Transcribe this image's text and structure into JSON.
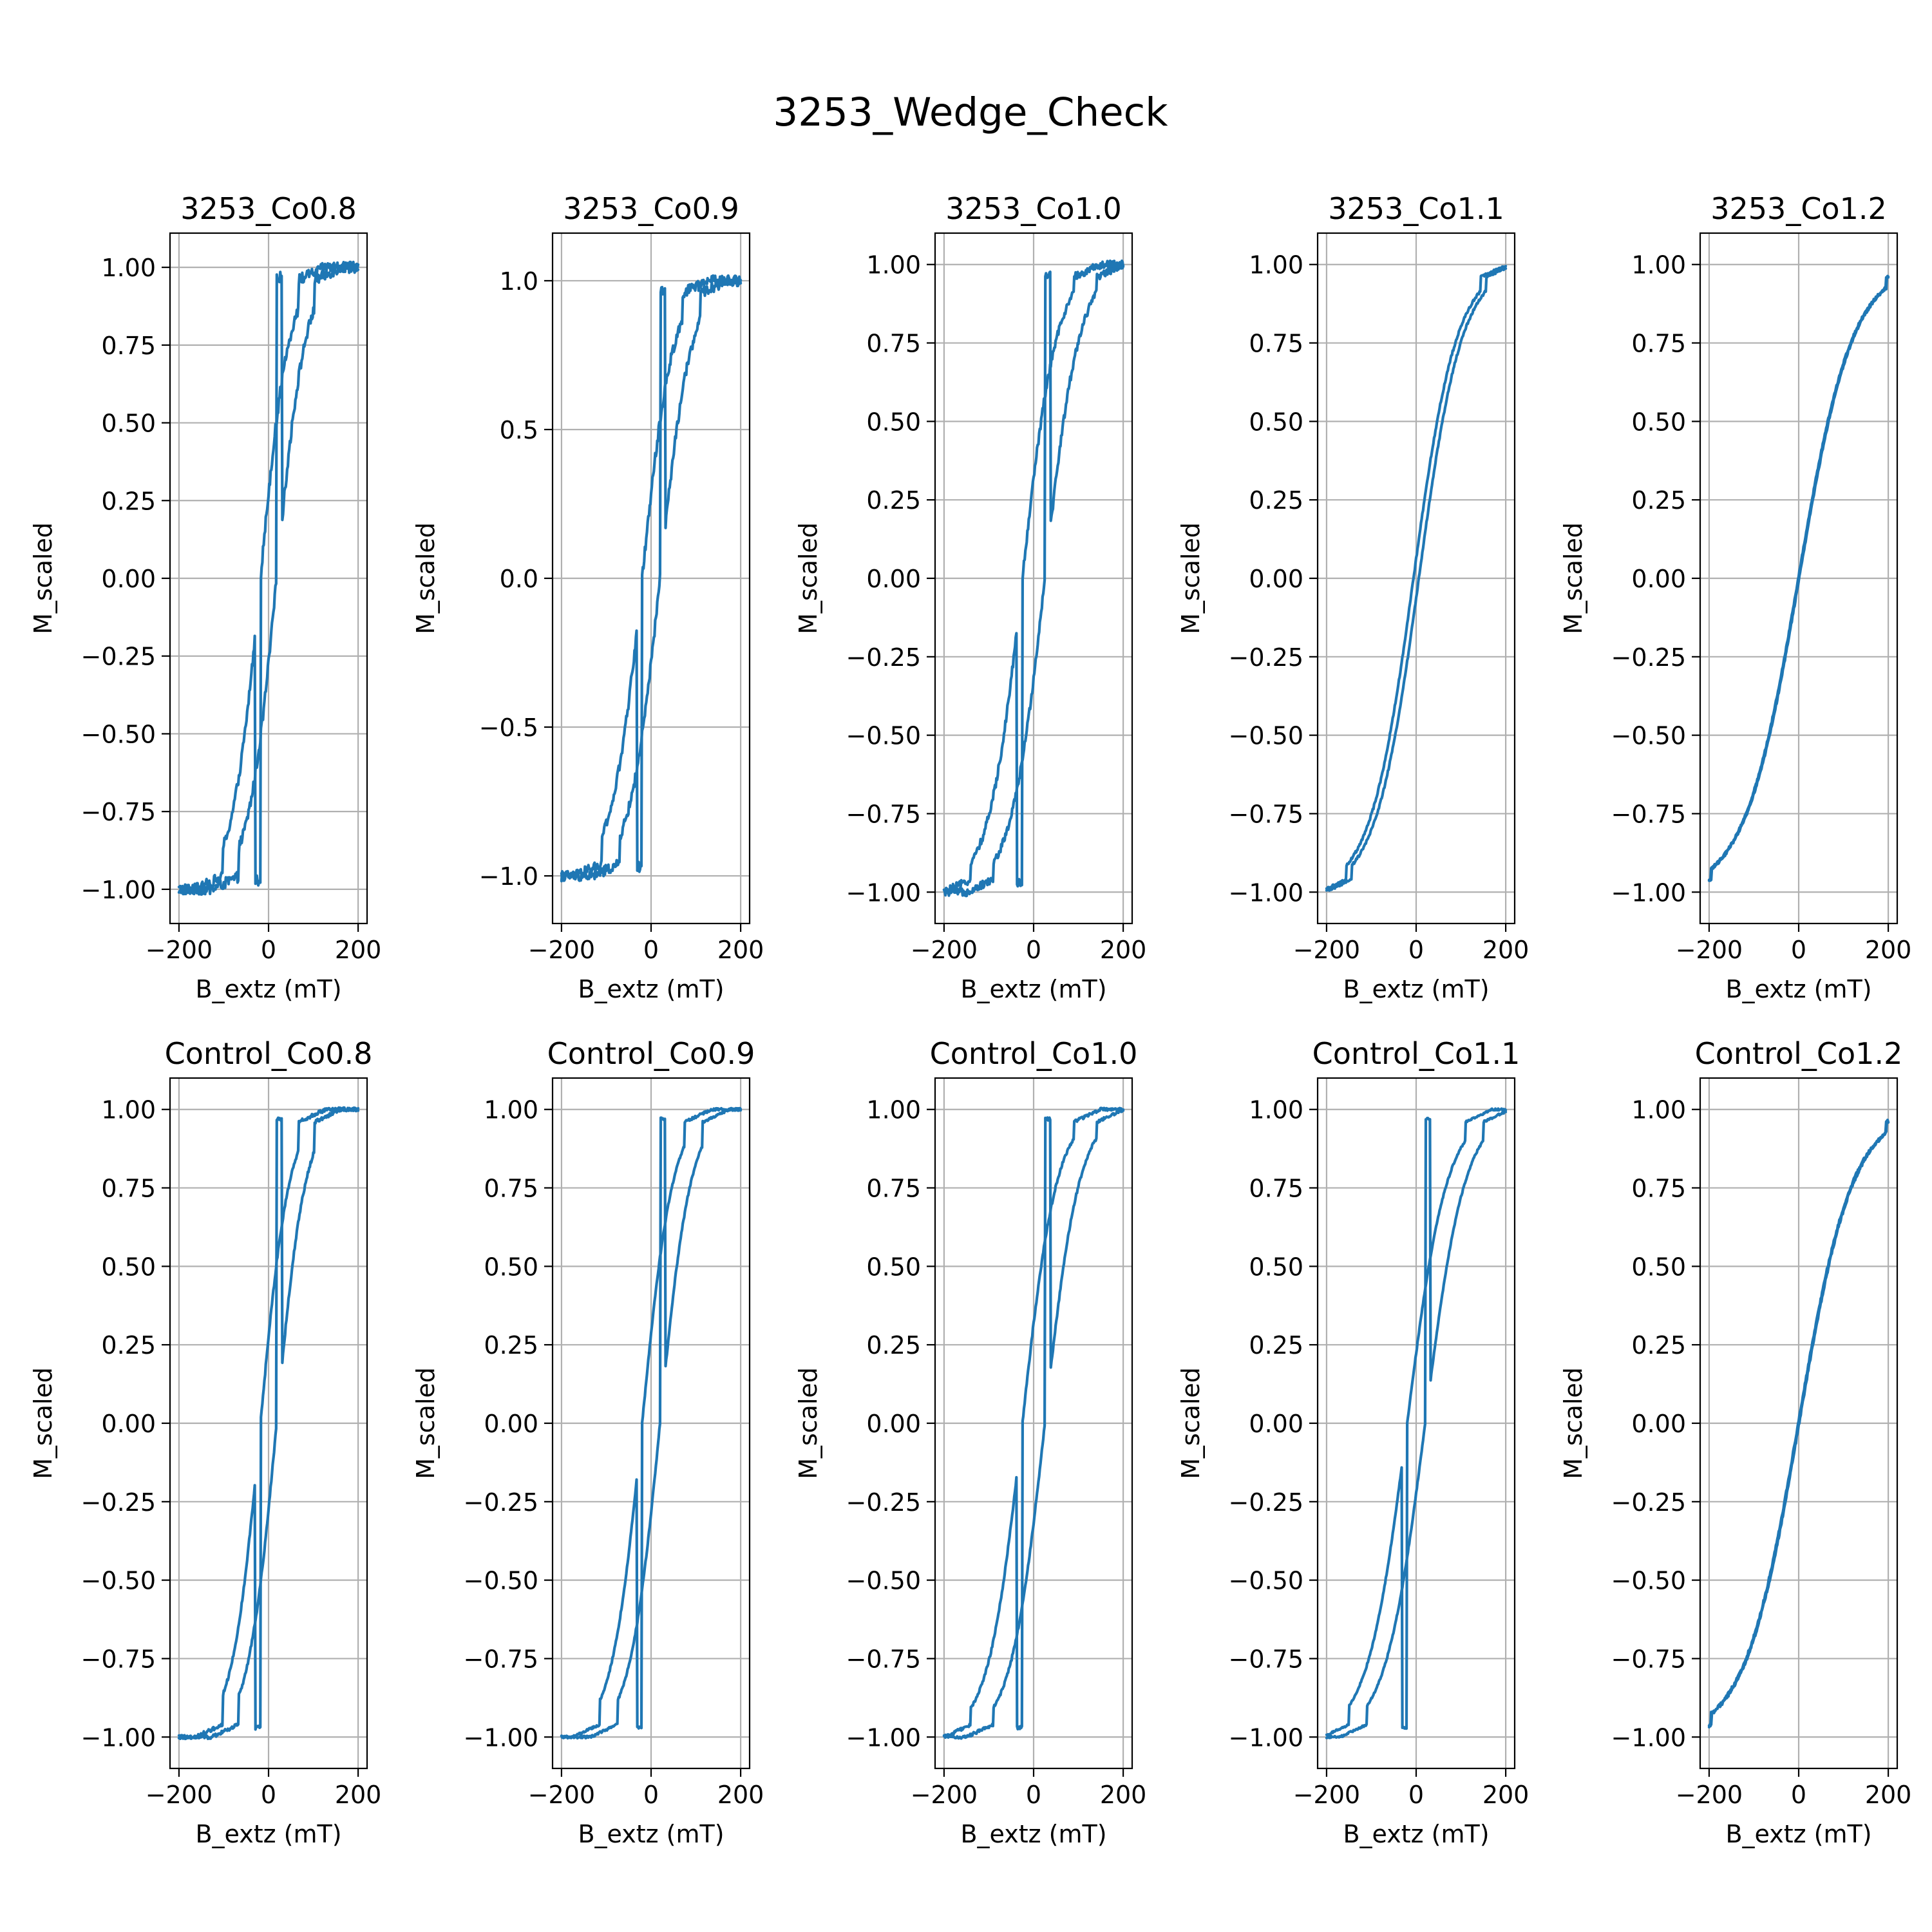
{
  "figure": {
    "title": "3253_Wedge_Check"
  },
  "style": {
    "line_color": "#1f77b4"
  },
  "chart_data": [
    {
      "type": "line",
      "title": "3253_Co0.8",
      "xlabel": "B_extz (mT)",
      "ylabel": "M_scaled",
      "xlim": [
        -220,
        220
      ],
      "ylim": [
        -1.11,
        1.11
      ],
      "xticks": [
        -200,
        0,
        200
      ],
      "xtick_labels": [
        "−200",
        "0",
        "200"
      ],
      "yticks": [
        1.0,
        0.75,
        0.5,
        0.25,
        0.0,
        -0.25,
        -0.5,
        -0.75,
        -1.0
      ],
      "ytick_labels": [
        "1.00",
        "0.75",
        "0.50",
        "0.25",
        "0.00",
        "−0.25",
        "−0.50",
        "−0.75",
        "−1.00"
      ],
      "grid": true,
      "series": [],
      "noisy": true,
      "loop": {
        "Hc": 18,
        "width": 80,
        "knee": 85,
        "noise": 0.035
      }
    },
    {
      "type": "line",
      "title": "3253_Co0.9",
      "xlabel": "B_extz (mT)",
      "ylabel": "M_scaled",
      "xlim": [
        -220,
        220
      ],
      "ylim": [
        -1.16,
        1.16
      ],
      "xticks": [
        -200,
        0,
        200
      ],
      "xtick_labels": [
        "−200",
        "0",
        "200"
      ],
      "yticks": [
        1.0,
        0.5,
        0.0,
        -0.5,
        -1.0
      ],
      "ytick_labels": [
        "1.0",
        "0.5",
        "0.0",
        "−0.5",
        "−1.0"
      ],
      "grid": true,
      "series": [],
      "noisy": true,
      "loop": {
        "Hc": 20,
        "width": 85,
        "knee": 90,
        "noise": 0.035
      }
    },
    {
      "type": "line",
      "title": "3253_Co1.0",
      "xlabel": "B_extz (mT)",
      "ylabel": "M_scaled",
      "xlim": [
        -220,
        220
      ],
      "ylim": [
        -1.1,
        1.1
      ],
      "xticks": [
        -200,
        0,
        200
      ],
      "xtick_labels": [
        "−200",
        "0",
        "200"
      ],
      "yticks": [
        1.0,
        0.75,
        0.5,
        0.25,
        0.0,
        -0.25,
        -0.5,
        -0.75,
        -1.0
      ],
      "ytick_labels": [
        "1.00",
        "0.75",
        "0.50",
        "0.25",
        "0.00",
        "−0.25",
        "−0.50",
        "−0.75",
        "−1.00"
      ],
      "grid": true,
      "series": [],
      "noisy": true,
      "loop": {
        "Hc": 25,
        "width": 95,
        "knee": 115,
        "noise": 0.025
      }
    },
    {
      "type": "line",
      "title": "3253_Co1.1",
      "xlabel": "B_extz (mT)",
      "ylabel": "M_scaled",
      "xlim": [
        -220,
        220
      ],
      "ylim": [
        -1.1,
        1.1
      ],
      "xticks": [
        -200,
        0,
        200
      ],
      "xtick_labels": [
        "−200",
        "0",
        "200"
      ],
      "yticks": [
        1.0,
        0.75,
        0.5,
        0.25,
        0.0,
        -0.25,
        -0.5,
        -0.75,
        -1.0
      ],
      "ytick_labels": [
        "1.00",
        "0.75",
        "0.50",
        "0.25",
        "0.00",
        "−0.25",
        "−0.50",
        "−0.75",
        "−1.00"
      ],
      "grid": true,
      "series": [],
      "noisy": false,
      "loop": {
        "Hc": 6,
        "width": 120,
        "knee": 150,
        "noise": 0.008
      }
    },
    {
      "type": "line",
      "title": "3253_Co1.2",
      "xlabel": "B_extz (mT)",
      "ylabel": "M_scaled",
      "xlim": [
        -220,
        220
      ],
      "ylim": [
        -1.1,
        1.1
      ],
      "xticks": [
        -200,
        0,
        200
      ],
      "xtick_labels": [
        "−200",
        "0",
        "200"
      ],
      "yticks": [
        1.0,
        0.75,
        0.5,
        0.25,
        0.0,
        -0.25,
        -0.5,
        -0.75,
        -1.0
      ],
      "ytick_labels": [
        "1.00",
        "0.75",
        "0.50",
        "0.25",
        "0.00",
        "−0.25",
        "−0.50",
        "−0.75",
        "−1.00"
      ],
      "grid": true,
      "series": [],
      "noisy": false,
      "loop": {
        "Hc": 1,
        "width": 150,
        "knee": 195,
        "noise": 0.008
      }
    },
    {
      "type": "line",
      "title": "Control_Co0.8",
      "xlabel": "B_extz (mT)",
      "ylabel": "M_scaled",
      "xlim": [
        -220,
        220
      ],
      "ylim": [
        -1.1,
        1.1
      ],
      "xticks": [
        -200,
        0,
        200
      ],
      "xtick_labels": [
        "−200",
        "0",
        "200"
      ],
      "yticks": [
        1.0,
        0.75,
        0.5,
        0.25,
        0.0,
        -0.25,
        -0.5,
        -0.75,
        -1.0
      ],
      "ytick_labels": [
        "1.00",
        "0.75",
        "0.50",
        "0.25",
        "0.00",
        "−0.25",
        "−0.50",
        "−0.75",
        "−1.00"
      ],
      "grid": true,
      "series": [],
      "noisy": false,
      "loop": {
        "Hc": 18,
        "width": 80,
        "knee": 85,
        "noise": 0.012
      }
    },
    {
      "type": "line",
      "title": "Control_Co0.9",
      "xlabel": "B_extz (mT)",
      "ylabel": "M_scaled",
      "xlim": [
        -220,
        220
      ],
      "ylim": [
        -1.1,
        1.1
      ],
      "xticks": [
        -200,
        0,
        200
      ],
      "xtick_labels": [
        "−200",
        "0",
        "200"
      ],
      "yticks": [
        1.0,
        0.75,
        0.5,
        0.25,
        0.0,
        -0.25,
        -0.5,
        -0.75,
        -1.0
      ],
      "ytick_labels": [
        "1.00",
        "0.75",
        "0.50",
        "0.25",
        "0.00",
        "−0.25",
        "−0.50",
        "−0.75",
        "−1.00"
      ],
      "grid": true,
      "series": [],
      "noisy": false,
      "loop": {
        "Hc": 20,
        "width": 85,
        "knee": 95,
        "noise": 0.008
      }
    },
    {
      "type": "line",
      "title": "Control_Co1.0",
      "xlabel": "B_extz (mT)",
      "ylabel": "M_scaled",
      "xlim": [
        -220,
        220
      ],
      "ylim": [
        -1.1,
        1.1
      ],
      "xticks": [
        -200,
        0,
        200
      ],
      "xtick_labels": [
        "−200",
        "0",
        "200"
      ],
      "yticks": [
        1.0,
        0.75,
        0.5,
        0.25,
        0.0,
        -0.25,
        -0.5,
        -0.75,
        -1.0
      ],
      "ytick_labels": [
        "1.00",
        "0.75",
        "0.50",
        "0.25",
        "0.00",
        "−0.25",
        "−0.50",
        "−0.75",
        "−1.00"
      ],
      "grid": true,
      "series": [],
      "noisy": false,
      "loop": {
        "Hc": 25,
        "width": 95,
        "knee": 115,
        "noise": 0.01
      }
    },
    {
      "type": "line",
      "title": "Control_Co1.1",
      "xlabel": "B_extz (mT)",
      "ylabel": "M_scaled",
      "xlim": [
        -220,
        220
      ],
      "ylim": [
        -1.1,
        1.1
      ],
      "xticks": [
        -200,
        0,
        200
      ],
      "xtick_labels": [
        "−200",
        "0",
        "200"
      ],
      "yticks": [
        1.0,
        0.75,
        0.5,
        0.25,
        0.0,
        -0.25,
        -0.5,
        -0.75,
        -1.0
      ],
      "ytick_labels": [
        "1.00",
        "0.75",
        "0.50",
        "0.25",
        "0.00",
        "−0.25",
        "−0.50",
        "−0.75",
        "−1.00"
      ],
      "grid": true,
      "series": [],
      "noisy": false,
      "loop": {
        "Hc": 20,
        "width": 110,
        "knee": 130,
        "noise": 0.006
      }
    },
    {
      "type": "line",
      "title": "Control_Co1.2",
      "xlabel": "B_extz (mT)",
      "ylabel": "M_scaled",
      "xlim": [
        -220,
        220
      ],
      "ylim": [
        -1.1,
        1.1
      ],
      "xticks": [
        -200,
        0,
        200
      ],
      "xtick_labels": [
        "−200",
        "0",
        "200"
      ],
      "yticks": [
        1.0,
        0.75,
        0.5,
        0.25,
        0.0,
        -0.25,
        -0.5,
        -0.75,
        -1.0
      ],
      "ytick_labels": [
        "1.00",
        "0.75",
        "0.50",
        "0.25",
        "0.00",
        "−0.25",
        "−0.50",
        "−0.75",
        "−1.00"
      ],
      "grid": true,
      "series": [],
      "noisy": false,
      "loop": {
        "Hc": 1,
        "width": 150,
        "knee": 195,
        "noise": 0.01
      }
    }
  ]
}
